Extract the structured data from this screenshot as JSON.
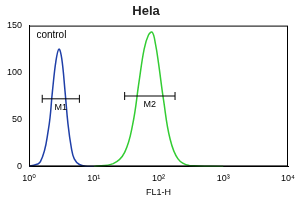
{
  "chart_data": {
    "type": "line",
    "title": "Hela",
    "x_label": "FL1-H",
    "log": "x",
    "grid": false,
    "series": [
      {
        "color": "#1f3fa8",
        "x": [
          1,
          1.5,
          2,
          2.3,
          2.6,
          2.9,
          3.2,
          3.6,
          4,
          4.5,
          5,
          6,
          8,
          10
        ],
        "values": [
          0,
          5,
          40,
          80,
          112,
          125,
          115,
          80,
          45,
          20,
          8,
          2,
          0,
          0
        ]
      },
      {
        "color": "#33cc33",
        "x": [
          10,
          20,
          30,
          40,
          50,
          60,
          70,
          80,
          90,
          100,
          120,
          150,
          200,
          300,
          1000
        ],
        "values": [
          0,
          3,
          15,
          45,
          90,
          125,
          140,
          143,
          130,
          110,
          70,
          30,
          8,
          1,
          0
        ]
      }
    ],
    "xlim": [
      1,
      10000
    ],
    "xticks": [
      {
        "value": 1,
        "label": "10⁰"
      },
      {
        "value": 10,
        "label": "10¹"
      },
      {
        "value": 100,
        "label": "10²"
      },
      {
        "value": 1000,
        "label": "10³"
      },
      {
        "value": 10000,
        "label": "10⁴"
      }
    ],
    "ylim": [
      0,
      150
    ],
    "yticks": [
      0,
      50,
      100,
      150
    ],
    "annotations": [
      {
        "text": "control",
        "x": 1.3,
        "y": 140
      }
    ],
    "gates": [
      {
        "label": "M1",
        "x": [
          1.6,
          6
        ],
        "y": 72
      },
      {
        "label": "M2",
        "x": [
          30,
          180
        ],
        "y": 75
      }
    ]
  }
}
